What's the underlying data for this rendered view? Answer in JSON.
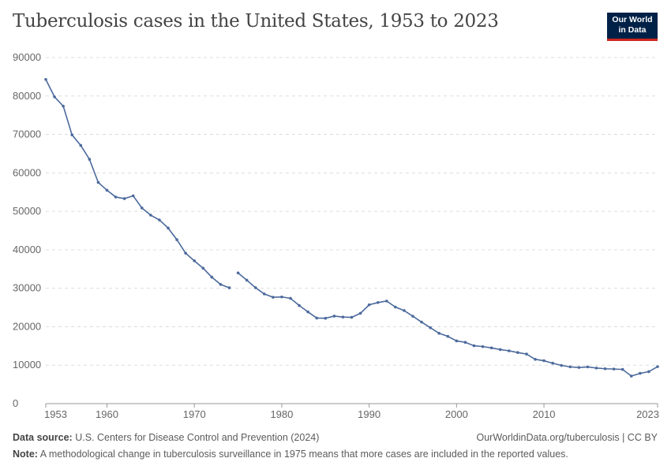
{
  "title": "Tuberculosis cases in the United States, 1953 to 2023",
  "logo": {
    "line1": "Our World",
    "line2": "in Data"
  },
  "footer": {
    "source_label": "Data source:",
    "source": "U.S. Centers for Disease Control and Prevention (2024)",
    "url": "OurWorldinData.org/tuberculosis | CC BY",
    "note_label": "Note:",
    "note": "A methodological change in tuberculosis surveillance in 1975 means that more cases are included in the reported values."
  },
  "chart_data": {
    "type": "line",
    "title": "Tuberculosis cases in the United States, 1953 to 2023",
    "xlim": [
      1953,
      2023
    ],
    "ylim": [
      0,
      90000
    ],
    "x_ticks": [
      "1953",
      "1960",
      "1970",
      "1980",
      "1990",
      "2000",
      "2010",
      "2023"
    ],
    "y_ticks": [
      "0",
      "10000",
      "20000",
      "30000",
      "40000",
      "50000",
      "60000",
      "70000",
      "80000",
      "90000"
    ],
    "grid": "horizontal dashed",
    "color": "#4c6a9c",
    "segments": [
      {
        "x": [
          1953,
          1954,
          1955,
          1956,
          1957,
          1958,
          1959,
          1960,
          1961,
          1962,
          1963,
          1964,
          1965,
          1966,
          1967,
          1968,
          1969,
          1970,
          1971,
          1972,
          1973,
          1974
        ],
        "y": [
          84304,
          79775,
          77368,
          69895,
          67149,
          63534,
          57535,
          55494,
          53726,
          53315,
          54042,
          50874,
          49016,
          47767,
          45647,
          42623,
          39120,
          37137,
          35217,
          32882,
          30998,
          30122
        ]
      },
      {
        "x": [
          1975,
          1976,
          1977,
          1978,
          1979,
          1980,
          1981,
          1982,
          1983,
          1984,
          1985,
          1986,
          1987,
          1988,
          1989,
          1990,
          1991,
          1992,
          1993,
          1994,
          1995,
          1996,
          1997,
          1998,
          1999,
          2000,
          2001,
          2002,
          2003,
          2004,
          2005,
          2006,
          2007,
          2008,
          2009,
          2010,
          2011,
          2012,
          2013,
          2014,
          2015,
          2016,
          2017,
          2018,
          2019,
          2020,
          2021,
          2022,
          2023
        ],
        "y": [
          33989,
          32105,
          30145,
          28521,
          27669,
          27749,
          27373,
          25520,
          23846,
          22255,
          22201,
          22768,
          22517,
          22436,
          23495,
          25701,
          26283,
          26673,
          25107,
          24205,
          22727,
          21210,
          19751,
          18287,
          17499,
          16308,
          15945,
          15055,
          14835,
          14499,
          14063,
          13732,
          13282,
          12893,
          11520,
          11161,
          10510,
          9940,
          9561,
          9398,
          9547,
          9253,
          9074,
          8994,
          8895,
          7170,
          7874,
          8320,
          9615
        ]
      }
    ]
  }
}
